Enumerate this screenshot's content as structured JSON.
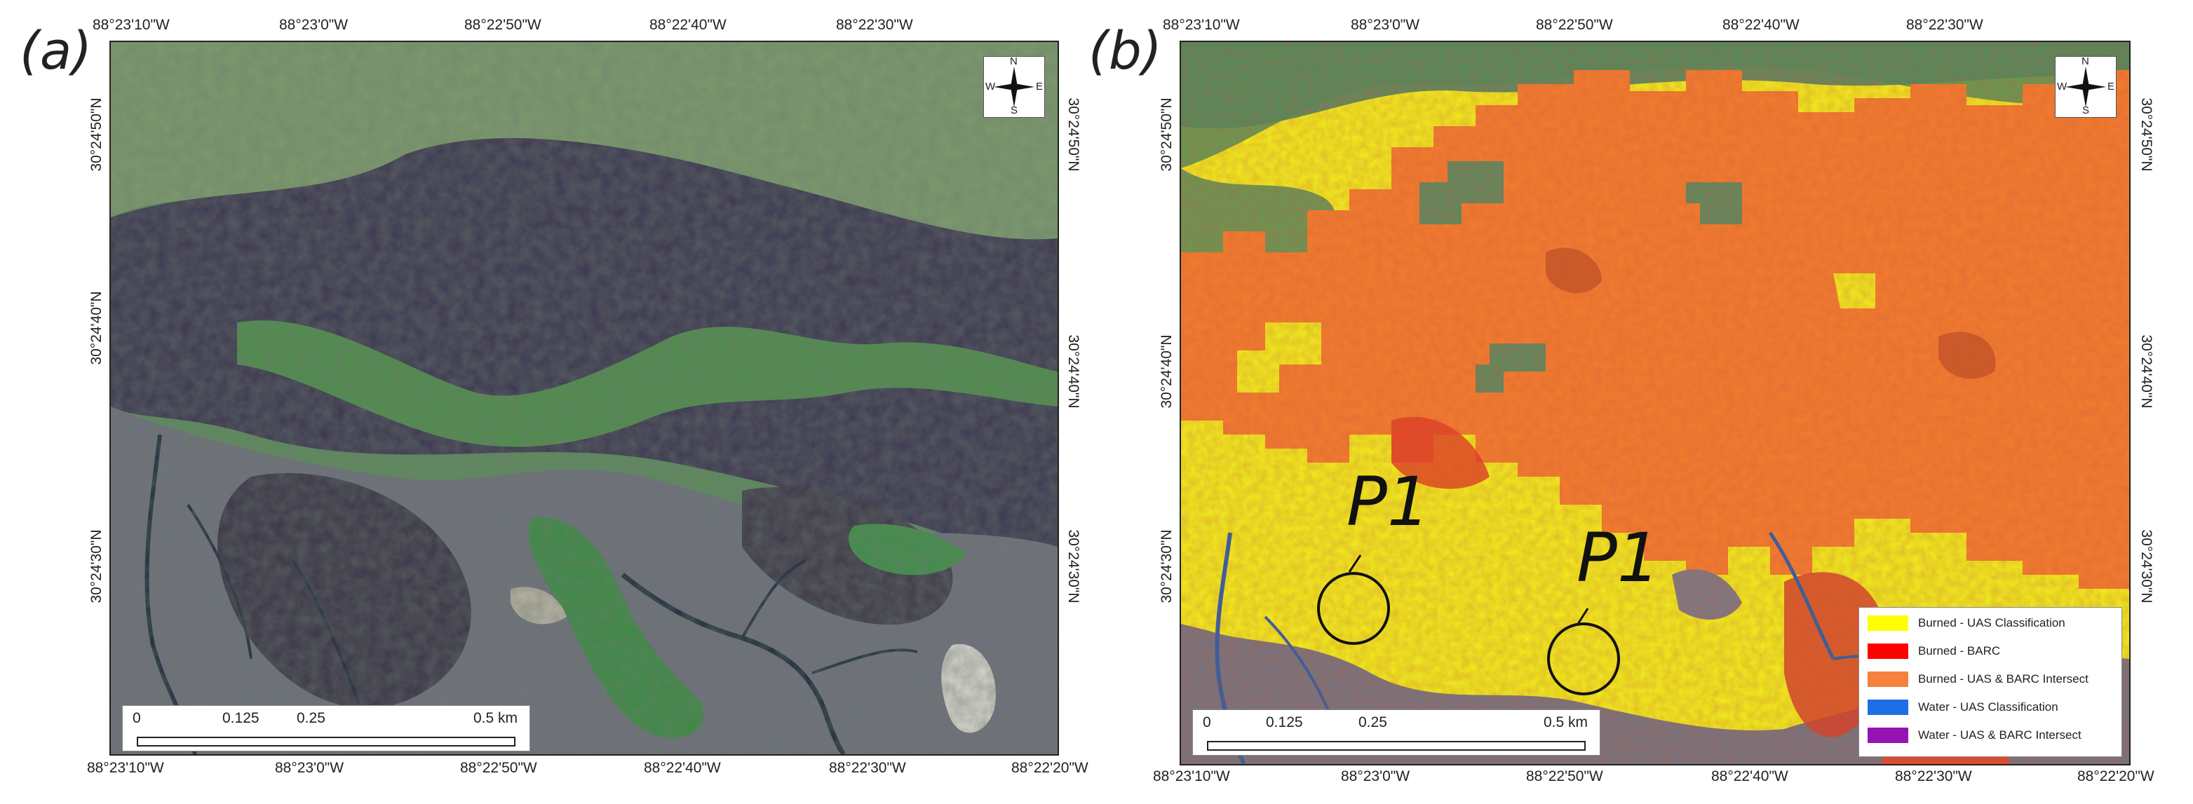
{
  "panel_a": {
    "label": "(a)",
    "top_ticks": [
      "88°23'10\"W",
      "88°23'0\"W",
      "88°22'50\"W",
      "88°22'40\"W",
      "88°22'30\"W"
    ],
    "bottom_ticks": [
      "88°23'10\"W",
      "88°23'0\"W",
      "88°22'50\"W",
      "88°22'40\"W",
      "88°22'30\"W",
      "88°22'20\"W"
    ],
    "left_ticks": [
      "30°24'50\"N",
      "30°24'40\"N",
      "30°24'30\"N"
    ],
    "right_ticks": [
      "30°24'50\"N",
      "30°24'40\"N",
      "30°24'30\"N"
    ],
    "scale": [
      "0",
      "0.125",
      "0.25",
      "0.5 km"
    ],
    "compass": {
      "n": "N",
      "s": "S",
      "e": "E",
      "w": "W"
    }
  },
  "panel_b": {
    "label": "(b)",
    "top_ticks": [
      "88°23'10\"W",
      "88°23'0\"W",
      "88°22'50\"W",
      "88°22'40\"W",
      "88°22'30\"W"
    ],
    "bottom_ticks": [
      "88°23'10\"W",
      "88°23'0\"W",
      "88°22'50\"W",
      "88°22'40\"W",
      "88°22'30\"W",
      "88°22'20\"W"
    ],
    "left_ticks": [
      "30°24'50\"N",
      "30°24'40\"N",
      "30°24'30\"N"
    ],
    "right_ticks": [
      "30°24'50\"N",
      "30°24'40\"N",
      "30°24'30\"N"
    ],
    "scale": [
      "0",
      "0.125",
      "0.25",
      "0.5 km"
    ],
    "compass": {
      "n": "N",
      "s": "S",
      "e": "E",
      "w": "W"
    },
    "points": [
      "P1",
      "P1"
    ],
    "legend": [
      {
        "label": "Burned - UAS Classification",
        "color": "#ffff00"
      },
      {
        "label": "Burned - BARC",
        "color": "#ff0000"
      },
      {
        "label": "Burned - UAS & BARC Intersect",
        "color": "#f5823c"
      },
      {
        "label": "Water - UAS Classification",
        "color": "#1e6ee6"
      },
      {
        "label": "Water - UAS & BARC Intersect",
        "color": "#9614b4"
      }
    ]
  },
  "colors": {
    "vegetation": "#4f8a52",
    "burned_dark": "#3b3550",
    "marsh_gray": "#7b7b86",
    "tidal_creek": "#1c2a3e",
    "uas_burned": "#ffff00",
    "intersect": "#f57c2d",
    "barc": "#e23a22"
  }
}
